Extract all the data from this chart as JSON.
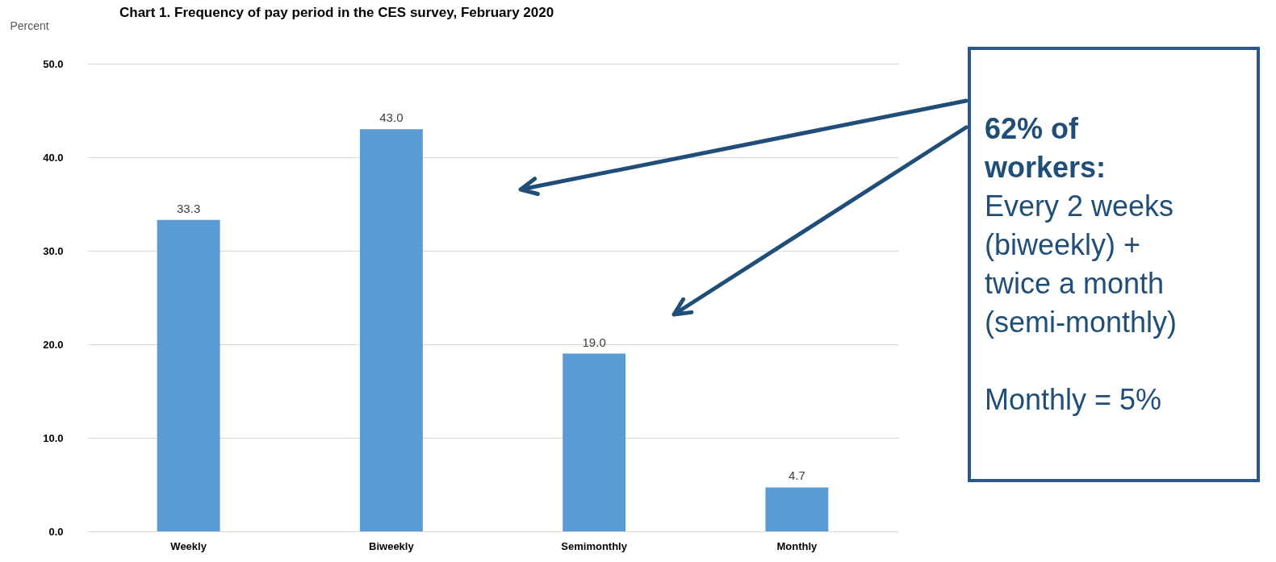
{
  "chart_data": {
    "type": "bar",
    "title": "Chart 1. Frequency of pay period in the CES survey, February 2020",
    "ylabel": "Percent",
    "categories": [
      "Weekly",
      "Biweekly",
      "Semimonthly",
      "Monthly"
    ],
    "values": [
      33.3,
      43.0,
      19.0,
      4.7
    ],
    "color": "#5b9bd5",
    "value_labels": [
      "33.3",
      "43.0",
      "19.0",
      "4.7"
    ],
    "ylim": [
      0,
      50
    ],
    "yticks": [
      {
        "value": 0,
        "label": "0.0"
      },
      {
        "value": 10,
        "label": "10.0"
      },
      {
        "value": 20,
        "label": "20.0"
      },
      {
        "value": 30,
        "label": "30.0"
      },
      {
        "value": 40,
        "label": "40.0"
      },
      {
        "value": 50,
        "label": "50.0"
      }
    ],
    "grid": "y",
    "annotations": [
      "62% of workers:",
      "Every 2 weeks (biweekly) + twice a month (semi-monthly)",
      "Monthly = 5%"
    ]
  }
}
